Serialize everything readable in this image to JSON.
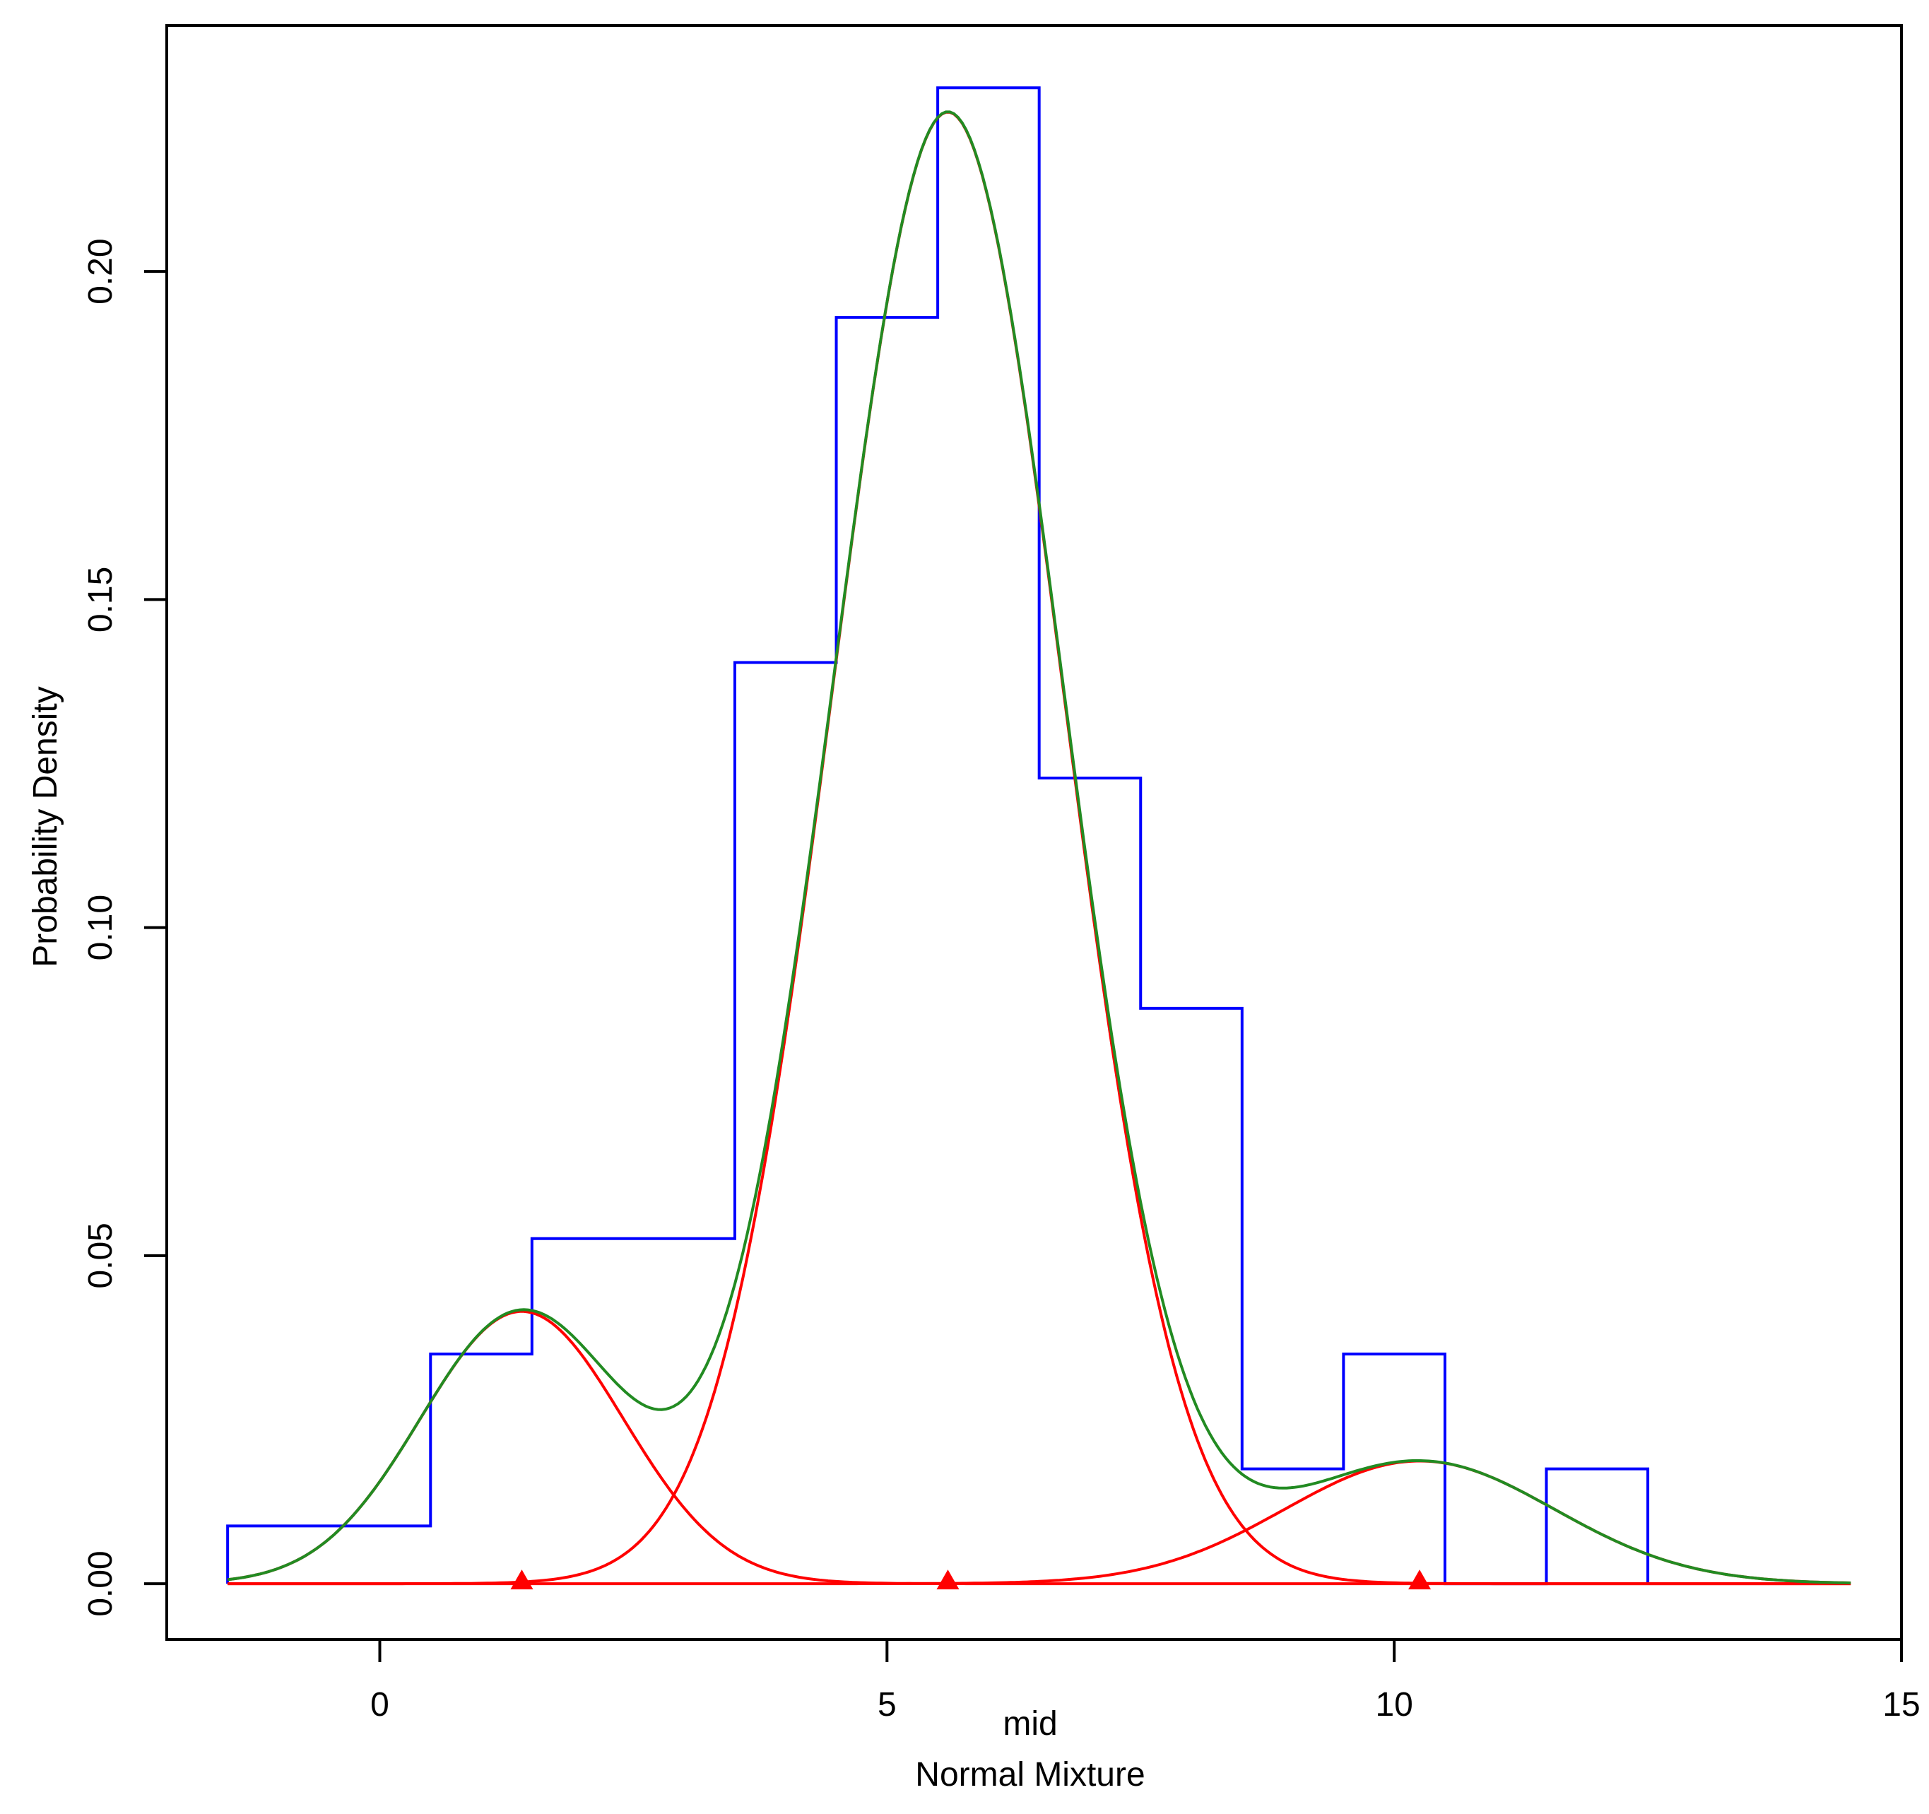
{
  "chart_data": {
    "type": "histogram-density",
    "xlabel": "mid",
    "sublabel": "Normal Mixture",
    "ylabel": "Probability Density",
    "xlim": [
      -2.1,
      15.0
    ],
    "ylim": [
      -0.0085,
      0.2375
    ],
    "x_ticks": [
      0,
      5,
      10,
      15
    ],
    "x_tick_labels": [
      "0",
      "5",
      "10",
      "15"
    ],
    "y_ticks": [
      0,
      0.05,
      0.1,
      0.15,
      0.2
    ],
    "y_tick_labels": [
      "0.00",
      "0.05",
      "0.10",
      "0.15",
      "0.20"
    ],
    "grid": false,
    "histogram": {
      "color": "#0000ff",
      "bin_edges": [
        -1.5,
        0.5,
        1.5,
        3.5,
        4.5,
        5.5,
        6.5,
        7.5,
        8.5,
        9.5,
        10.5,
        11.5,
        12.5
      ],
      "densities": [
        0.0088,
        0.035,
        0.0526,
        0.1404,
        0.193,
        0.228,
        0.1228,
        0.0877,
        0.0175,
        0.035,
        0.0,
        0.0175
      ]
    },
    "mixture_components": {
      "color": "#ff0000",
      "components": [
        {
          "mean": 1.4,
          "sd": 1.0,
          "weight": 0.104,
          "peak": 0.0415
        },
        {
          "mean": 5.6,
          "sd": 1.14,
          "weight": 0.641,
          "peak": 0.2243
        },
        {
          "mean": 10.25,
          "sd": 1.33,
          "weight": 0.0625,
          "peak": 0.0187
        }
      ],
      "mean_markers": [
        1.4,
        5.6,
        10.25
      ]
    },
    "mixture_density": {
      "color": "#228b22",
      "x_range": [
        -1.5,
        14.5
      ],
      "peak": 0.2245
    }
  }
}
